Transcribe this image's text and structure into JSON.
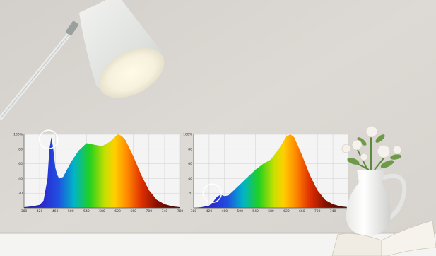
{
  "scene": {
    "description_tag": "lamp-spectrum-comparison",
    "wall_color": "#d9d6d2",
    "table_color": "#f3f3f2"
  },
  "chart_data": [
    {
      "type": "area",
      "title": "",
      "xlabel": "",
      "ylabel": "",
      "x_ticks": [
        "380",
        "420",
        "460",
        "500",
        "540",
        "580",
        "620",
        "660",
        "700",
        "740",
        "780"
      ],
      "y_ticks": [
        "100%",
        "80",
        "60",
        "40",
        "20"
      ],
      "xlim": [
        380,
        780
      ],
      "ylim": [
        0,
        100
      ],
      "grid": true,
      "highlight": {
        "x": 450,
        "label": "blue-peak-circle"
      },
      "series": [
        {
          "x": [
            380,
            400,
            420,
            430,
            440,
            445,
            450,
            455,
            460,
            465,
            470,
            480,
            490,
            500,
            520,
            540,
            560,
            580,
            600,
            620,
            630,
            640,
            660,
            680,
            700,
            720,
            740,
            760,
            780
          ],
          "y": [
            1,
            2,
            4,
            10,
            40,
            80,
            96,
            80,
            55,
            45,
            40,
            42,
            52,
            62,
            78,
            88,
            86,
            84,
            90,
            100,
            98,
            92,
            70,
            45,
            24,
            11,
            5,
            2,
            1
          ]
        }
      ]
    },
    {
      "type": "area",
      "title": "",
      "xlabel": "",
      "ylabel": "",
      "x_ticks": [
        "380",
        "420",
        "460",
        "500",
        "540",
        "580",
        "620",
        "660",
        "700",
        "740",
        "780"
      ],
      "y_ticks": [
        "100%",
        "80",
        "60",
        "40",
        "20"
      ],
      "xlim": [
        380,
        780
      ],
      "ylim": [
        0,
        100
      ],
      "grid": true,
      "highlight": {
        "x": 450,
        "label": "blue-valley-circle"
      },
      "series": [
        {
          "x": [
            380,
            400,
            420,
            430,
            440,
            450,
            460,
            470,
            480,
            500,
            520,
            540,
            560,
            580,
            600,
            620,
            630,
            640,
            660,
            680,
            700,
            720,
            740,
            760,
            780
          ],
          "y": [
            0,
            1,
            3,
            8,
            15,
            18,
            16,
            17,
            22,
            32,
            42,
            52,
            60,
            66,
            80,
            97,
            100,
            96,
            72,
            45,
            24,
            11,
            5,
            2,
            1
          ]
        }
      ]
    }
  ]
}
